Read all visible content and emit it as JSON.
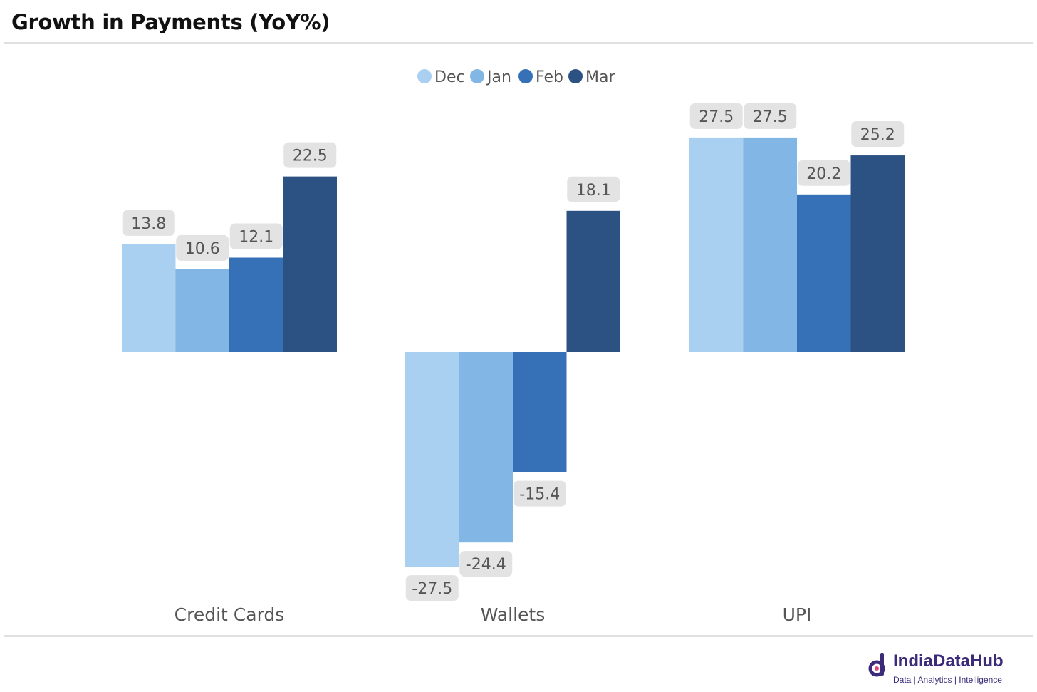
{
  "chart_data": {
    "type": "bar",
    "title": "Growth in Payments (YoY%)",
    "categories": [
      "Credit Cards",
      "Wallets",
      "UPI"
    ],
    "series": [
      {
        "name": "Dec",
        "color": "#a9d0f1",
        "values": [
          13.8,
          -27.5,
          27.5
        ]
      },
      {
        "name": "Jan",
        "color": "#82b6e4",
        "values": [
          10.6,
          -24.4,
          27.5
        ]
      },
      {
        "name": "Feb",
        "color": "#3670b7",
        "values": [
          12.1,
          -15.4,
          20.2
        ]
      },
      {
        "name": "Mar",
        "color": "#2c5284",
        "values": [
          22.5,
          18.1,
          25.2
        ]
      }
    ],
    "legend": "top-center",
    "grid": false,
    "xlabel": "",
    "ylabel": "",
    "ylim": [
      -30,
      30
    ]
  },
  "brand": {
    "name": "IndiaDataHub",
    "tagline": "Data | Analytics | Intelligence"
  }
}
